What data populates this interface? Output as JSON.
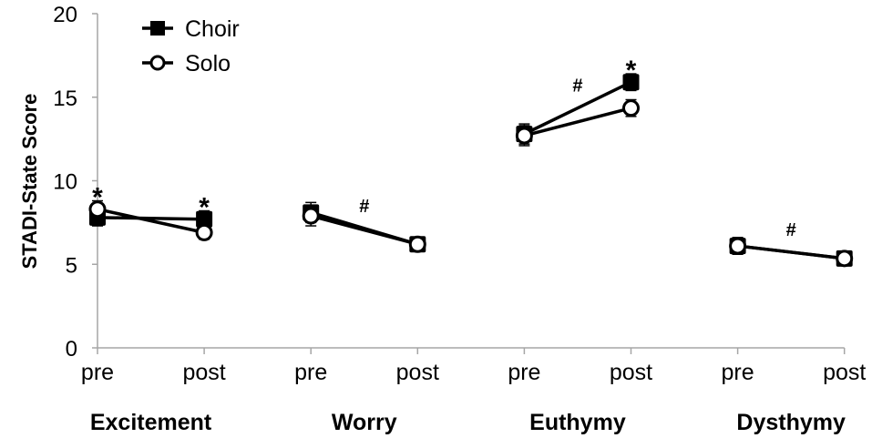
{
  "chart_data": {
    "type": "line",
    "title": "",
    "ylabel": "STADI-State Score",
    "xlabel": "",
    "ylim": [
      0,
      20
    ],
    "yticks": [
      0,
      5,
      10,
      15,
      20
    ],
    "grid": false,
    "legend_position": "top-left",
    "groups": [
      "Excitement",
      "Worry",
      "Euthymy",
      "Dysthymy"
    ],
    "categories": [
      "pre",
      "post",
      "pre",
      "post",
      "pre",
      "post",
      "pre",
      "post"
    ],
    "series": [
      {
        "name": "Choir",
        "marker": "filled-square",
        "values": [
          7.8,
          7.7,
          8.1,
          6.2,
          12.8,
          15.9,
          6.1,
          5.35
        ],
        "errors": [
          0.5,
          0.5,
          0.6,
          0.3,
          0.6,
          0.5,
          0.5,
          0.3
        ]
      },
      {
        "name": "Solo",
        "marker": "open-circle",
        "values": [
          8.3,
          6.9,
          7.9,
          6.2,
          12.7,
          14.35,
          6.1,
          5.35
        ],
        "errors": [
          0.5,
          0.4,
          0.6,
          0.3,
          0.6,
          0.5,
          0.5,
          0.3
        ]
      }
    ],
    "annotations": [
      {
        "text": "*",
        "group": "Excitement",
        "at": "pre"
      },
      {
        "text": "*",
        "group": "Excitement",
        "at": "post"
      },
      {
        "text": "#",
        "group": "Worry",
        "at": "between"
      },
      {
        "text": "#",
        "group": "Euthymy",
        "at": "between"
      },
      {
        "text": "*",
        "group": "Euthymy",
        "at": "post"
      },
      {
        "text": "#",
        "group": "Dysthymy",
        "at": "between"
      }
    ]
  },
  "colors": {
    "axis": "#a6a6a6",
    "series": "#000000",
    "text": "#000000"
  }
}
